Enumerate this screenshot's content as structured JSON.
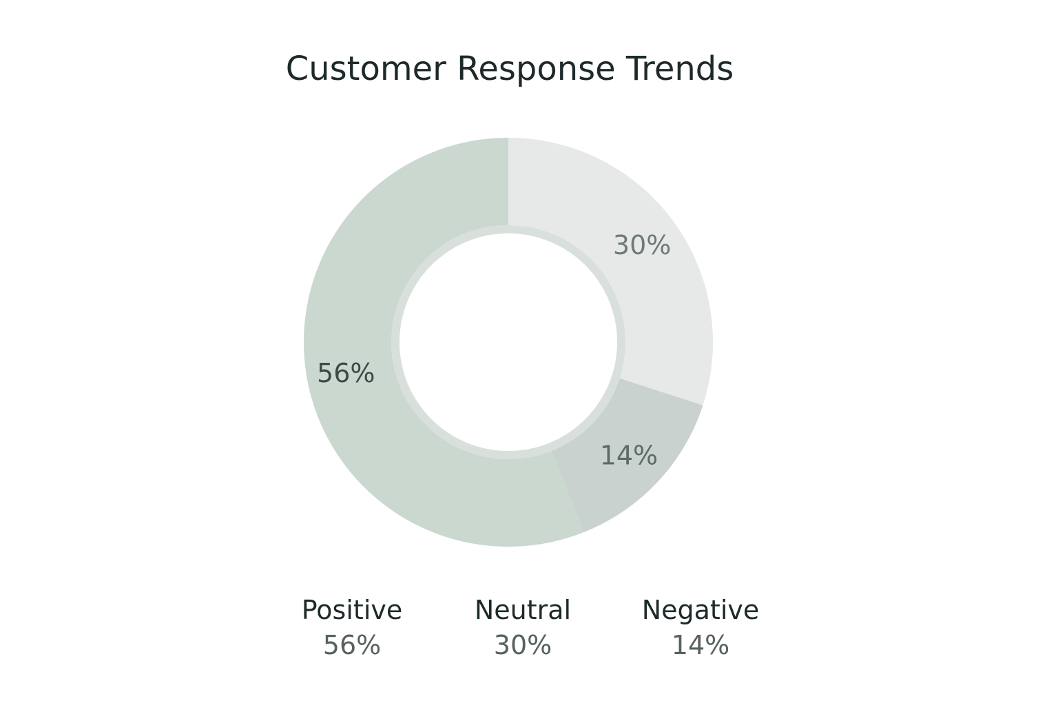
{
  "chart_data": {
    "type": "pie",
    "title": "Customer Response Trends",
    "donut": true,
    "slices": [
      {
        "name": "Neutral",
        "value": 30,
        "label": "30%",
        "color": "#e6e9e8",
        "label_color": "#6f7a78"
      },
      {
        "name": "Negative",
        "value": 14,
        "label": "14%",
        "color": "#c9d2ce",
        "label_color": "#5e6a67"
      },
      {
        "name": "Positive",
        "value": 56,
        "label": "56%",
        "color": "#cad8d0",
        "label_color": "#3e4a47"
      }
    ],
    "legend": [
      {
        "name": "Positive",
        "value": "56%"
      },
      {
        "name": "Neutral",
        "value": "30%"
      },
      {
        "name": "Negative",
        "value": "14%"
      }
    ],
    "legend_position": "bottom"
  }
}
